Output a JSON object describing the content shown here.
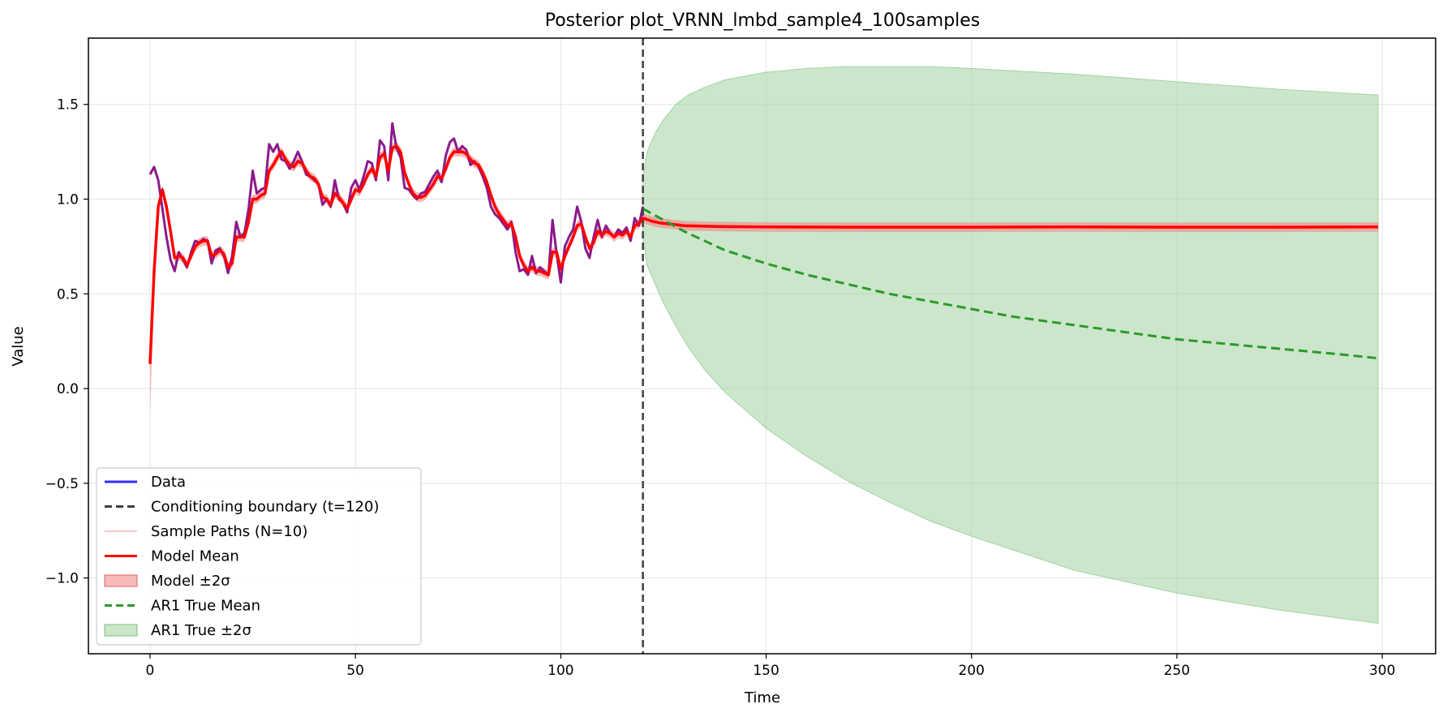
{
  "chart_data": {
    "type": "line",
    "title": "Posterior plot_VRNN_lmbd_sample4_100samples",
    "xlabel": "Time",
    "ylabel": "Value",
    "xlim": [
      -15,
      313
    ],
    "ylim": [
      -1.4,
      1.85
    ],
    "xticks": [
      0,
      50,
      100,
      150,
      200,
      250,
      300
    ],
    "yticks": [
      -1.0,
      -0.5,
      0.0,
      0.5,
      1.0,
      1.5
    ],
    "xtick_labels": [
      "0",
      "50",
      "100",
      "150",
      "200",
      "250",
      "300"
    ],
    "ytick_labels": [
      "−1.0",
      "−0.5",
      "0.0",
      "0.5",
      "1.0",
      "1.5"
    ],
    "grid": true,
    "legend_position": "lower-left",
    "conditioning_boundary": 120,
    "colors": {
      "data": "#3030ff",
      "data_observed": "#8b1a8b",
      "boundary": "#404040",
      "sample_paths": "#f4a3a3",
      "model_mean": "#ff0000",
      "model_band": "#f08080",
      "ar1_mean": "#2a9a2a",
      "ar1_band": "#a8d5a8"
    },
    "legend": [
      {
        "label": "Data",
        "kind": "line",
        "style": "data"
      },
      {
        "label": "Conditioning boundary (t=120)",
        "kind": "dashed",
        "style": "boundary"
      },
      {
        "label": "Sample Paths (N=10)",
        "kind": "thin",
        "style": "sample_paths"
      },
      {
        "label": "Model Mean",
        "kind": "line",
        "style": "model_mean"
      },
      {
        "label": "Model ±2σ",
        "kind": "patch",
        "style": "model_band"
      },
      {
        "label": "AR1 True Mean",
        "kind": "dashed",
        "style": "ar1_mean"
      },
      {
        "label": "AR1 True ±2σ",
        "kind": "patch",
        "style": "ar1_band"
      }
    ],
    "data_series": {
      "x": [
        0,
        1,
        2,
        3,
        4,
        5,
        6,
        7,
        8,
        9,
        10,
        11,
        12,
        13,
        14,
        15,
        16,
        17,
        18,
        19,
        20,
        21,
        22,
        23,
        24,
        25,
        26,
        27,
        28,
        29,
        30,
        31,
        32,
        33,
        34,
        35,
        36,
        37,
        38,
        39,
        40,
        41,
        42,
        43,
        44,
        45,
        46,
        47,
        48,
        49,
        50,
        51,
        52,
        53,
        54,
        55,
        56,
        57,
        58,
        59,
        60,
        61,
        62,
        63,
        64,
        65,
        66,
        67,
        68,
        69,
        70,
        71,
        72,
        73,
        74,
        75,
        76,
        77,
        78,
        79,
        80,
        81,
        82,
        83,
        84,
        85,
        86,
        87,
        88,
        89,
        90,
        91,
        92,
        93,
        94,
        95,
        96,
        97,
        98,
        99,
        100,
        101,
        102,
        103,
        104,
        105,
        106,
        107,
        108,
        109,
        110,
        111,
        112,
        113,
        114,
        115,
        116,
        117,
        118,
        119,
        120
      ],
      "y": [
        1.13,
        1.17,
        1.1,
        0.95,
        0.8,
        0.68,
        0.62,
        0.72,
        0.68,
        0.64,
        0.72,
        0.78,
        0.77,
        0.79,
        0.78,
        0.66,
        0.73,
        0.74,
        0.7,
        0.61,
        0.7,
        0.88,
        0.8,
        0.82,
        0.95,
        1.15,
        1.03,
        1.05,
        1.06,
        1.29,
        1.25,
        1.29,
        1.21,
        1.2,
        1.16,
        1.2,
        1.25,
        1.2,
        1.13,
        1.12,
        1.1,
        1.08,
        0.97,
        1.0,
        0.96,
        1.1,
        1.0,
        0.98,
        0.93,
        1.06,
        1.1,
        1.05,
        1.12,
        1.2,
        1.19,
        1.1,
        1.31,
        1.28,
        1.1,
        1.4,
        1.27,
        1.22,
        1.06,
        1.05,
        1.02,
        1.0,
        1.03,
        1.04,
        1.08,
        1.12,
        1.15,
        1.09,
        1.23,
        1.3,
        1.32,
        1.25,
        1.28,
        1.26,
        1.18,
        1.2,
        1.17,
        1.12,
        1.06,
        0.96,
        0.92,
        0.9,
        0.87,
        0.84,
        0.88,
        0.72,
        0.62,
        0.63,
        0.6,
        0.7,
        0.61,
        0.64,
        0.62,
        0.6,
        0.89,
        0.71,
        0.56,
        0.75,
        0.8,
        0.84,
        0.96,
        0.88,
        0.74,
        0.69,
        0.8,
        0.89,
        0.8,
        0.86,
        0.82,
        0.8,
        0.84,
        0.82,
        0.85,
        0.78,
        0.9,
        0.86,
        0.96
      ]
    },
    "model_mean_observed": {
      "x": [
        0,
        1,
        2,
        3,
        4,
        5,
        6,
        7,
        8,
        9,
        10,
        11,
        12,
        13,
        14,
        15,
        16,
        17,
        18,
        19,
        20,
        21,
        22,
        23,
        24,
        25,
        26,
        27,
        28,
        29,
        30,
        31,
        32,
        33,
        34,
        35,
        36,
        37,
        38,
        39,
        40,
        41,
        42,
        43,
        44,
        45,
        46,
        47,
        48,
        49,
        50,
        51,
        52,
        53,
        54,
        55,
        56,
        57,
        58,
        59,
        60,
        61,
        62,
        63,
        64,
        65,
        66,
        67,
        68,
        69,
        70,
        71,
        72,
        73,
        74,
        75,
        76,
        77,
        78,
        79,
        80,
        81,
        82,
        83,
        84,
        85,
        86,
        87,
        88,
        89,
        90,
        91,
        92,
        93,
        94,
        95,
        96,
        97,
        98,
        99,
        100,
        101,
        102,
        103,
        104,
        105,
        106,
        107,
        108,
        109,
        110,
        111,
        112,
        113,
        114,
        115,
        116,
        117,
        118,
        119,
        120
      ],
      "y": [
        0.13,
        0.62,
        0.96,
        1.05,
        0.96,
        0.83,
        0.69,
        0.7,
        0.69,
        0.65,
        0.7,
        0.75,
        0.77,
        0.78,
        0.78,
        0.7,
        0.71,
        0.73,
        0.71,
        0.64,
        0.66,
        0.8,
        0.8,
        0.8,
        0.88,
        1.0,
        1.0,
        1.02,
        1.03,
        1.15,
        1.18,
        1.22,
        1.25,
        1.21,
        1.18,
        1.17,
        1.2,
        1.19,
        1.15,
        1.12,
        1.11,
        1.08,
        1.01,
        1.0,
        0.97,
        1.03,
        1.01,
        0.98,
        0.95,
        1.0,
        1.05,
        1.04,
        1.08,
        1.13,
        1.16,
        1.12,
        1.22,
        1.24,
        1.15,
        1.27,
        1.28,
        1.25,
        1.14,
        1.08,
        1.03,
        1.01,
        1.01,
        1.02,
        1.05,
        1.08,
        1.12,
        1.11,
        1.16,
        1.22,
        1.25,
        1.25,
        1.25,
        1.24,
        1.21,
        1.19,
        1.18,
        1.14,
        1.09,
        1.02,
        0.96,
        0.92,
        0.89,
        0.86,
        0.87,
        0.8,
        0.7,
        0.65,
        0.62,
        0.64,
        0.62,
        0.62,
        0.61,
        0.6,
        0.72,
        0.72,
        0.63,
        0.7,
        0.75,
        0.8,
        0.86,
        0.87,
        0.8,
        0.74,
        0.77,
        0.83,
        0.81,
        0.83,
        0.82,
        0.8,
        0.82,
        0.81,
        0.83,
        0.8,
        0.86,
        0.87,
        0.9
      ]
    },
    "model_mean_forecast": {
      "x": [
        120,
        122,
        124,
        126,
        128,
        130,
        135,
        140,
        150,
        175,
        200,
        225,
        250,
        275,
        299
      ],
      "y": [
        0.9,
        0.885,
        0.875,
        0.87,
        0.865,
        0.86,
        0.857,
        0.855,
        0.853,
        0.852,
        0.852,
        0.853,
        0.852,
        0.852,
        0.853
      ]
    },
    "model_band_half_width": 0.025,
    "ar1_mean": {
      "x": [
        120,
        130,
        140,
        150,
        160,
        170,
        180,
        190,
        200,
        210,
        220,
        230,
        240,
        250,
        260,
        270,
        280,
        290,
        299
      ],
      "y": [
        0.95,
        0.83,
        0.73,
        0.66,
        0.6,
        0.55,
        0.5,
        0.46,
        0.42,
        0.38,
        0.35,
        0.32,
        0.29,
        0.26,
        0.24,
        0.22,
        0.2,
        0.18,
        0.16
      ]
    },
    "ar1_band_upper": {
      "x": [
        120,
        121,
        123,
        125,
        128,
        131,
        135,
        140,
        150,
        160,
        170,
        180,
        190,
        200,
        225,
        250,
        275,
        299
      ],
      "y": [
        1.1,
        1.25,
        1.35,
        1.42,
        1.5,
        1.55,
        1.59,
        1.63,
        1.67,
        1.69,
        1.7,
        1.7,
        1.7,
        1.69,
        1.66,
        1.62,
        1.58,
        1.55
      ]
    },
    "ar1_band_lower": {
      "x": [
        120,
        121,
        123,
        125,
        128,
        131,
        135,
        140,
        150,
        160,
        170,
        180,
        190,
        200,
        225,
        250,
        275,
        299
      ],
      "y": [
        0.8,
        0.65,
        0.55,
        0.45,
        0.33,
        0.22,
        0.1,
        -0.02,
        -0.21,
        -0.36,
        -0.49,
        -0.6,
        -0.7,
        -0.78,
        -0.96,
        -1.08,
        -1.17,
        -1.24
      ]
    }
  }
}
